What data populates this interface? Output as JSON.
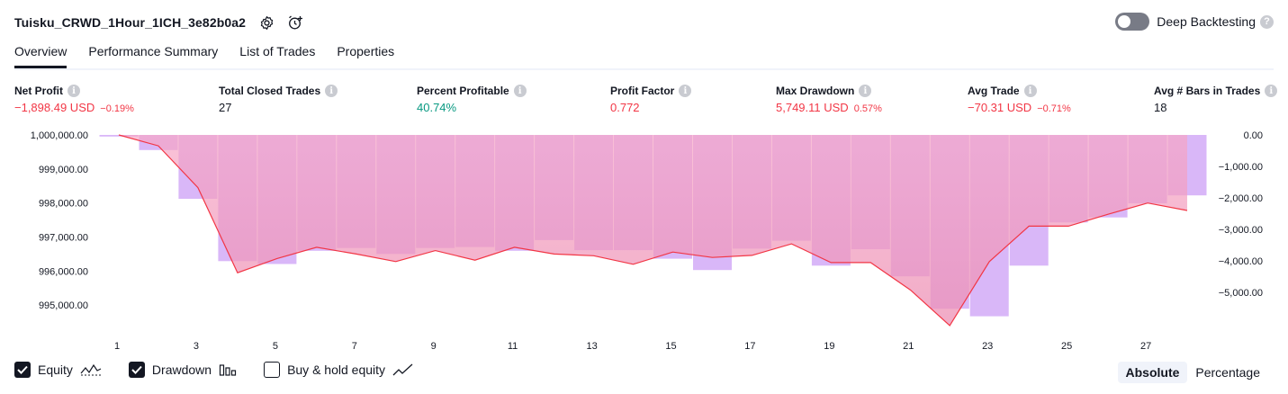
{
  "header": {
    "strategy_name": "Tuisku_CRWD_1Hour_1ICH_3e82b0a2",
    "deep_backtesting_label": "Deep Backtesting",
    "deep_backtesting_enabled": false,
    "icons": [
      "settings-icon",
      "alarm-add-icon",
      "help-icon"
    ]
  },
  "tabs": [
    {
      "label": "Overview",
      "active": true
    },
    {
      "label": "Performance Summary",
      "active": false
    },
    {
      "label": "List of Trades",
      "active": false
    },
    {
      "label": "Properties",
      "active": false
    }
  ],
  "metrics": {
    "net_profit": {
      "label": "Net Profit",
      "value": "−1,898.49 USD",
      "pct": "−0.19%"
    },
    "total_closed_trades": {
      "label": "Total Closed Trades",
      "value": "27"
    },
    "percent_profitable": {
      "label": "Percent Profitable",
      "value": "40.74%"
    },
    "profit_factor": {
      "label": "Profit Factor",
      "value": "0.772"
    },
    "max_drawdown": {
      "label": "Max Drawdown",
      "value": "5,749.11 USD",
      "pct": "0.57%"
    },
    "avg_trade": {
      "label": "Avg Trade",
      "value": "−70.31 USD",
      "pct": "−0.71%"
    },
    "avg_bars": {
      "label": "Avg # Bars in Trades",
      "value": "18"
    }
  },
  "legend": {
    "equity": {
      "label": "Equity",
      "checked": true
    },
    "drawdown": {
      "label": "Drawdown",
      "checked": true
    },
    "buy_hold": {
      "label": "Buy & hold equity",
      "checked": false
    }
  },
  "modes": {
    "absolute": "Absolute",
    "percentage": "Percentage",
    "active": "absolute"
  },
  "colors": {
    "equity_line": "#f23645",
    "equity_fill_top": "#f7a5c4",
    "equity_fill_bottom": "#ec8fb4",
    "drawdown_bar": "#d9b7f8",
    "negative": "#f23645",
    "positive": "#089981"
  },
  "chart_data": {
    "type": "line",
    "left_axis": {
      "ticks": [
        1000000,
        999000,
        998000,
        997000,
        996000,
        995000
      ],
      "tick_labels": [
        "1,000,000.00",
        "999,000.00",
        "998,000.00",
        "997,000.00",
        "996,000.00",
        "995,000.00"
      ],
      "ylim": [
        994450,
        1000000
      ]
    },
    "right_axis": {
      "ticks": [
        0,
        -1000,
        -2000,
        -3000,
        -4000,
        -5000
      ],
      "tick_labels": [
        "0.00",
        "−1,000.00",
        "−2,000.00",
        "−3,000.00",
        "−4,000.00",
        "−5,000.00"
      ],
      "ylim": [
        -6000,
        0
      ]
    },
    "x_ticks": [
      "1",
      "3",
      "5",
      "7",
      "9",
      "11",
      "13",
      "15",
      "17",
      "19",
      "21",
      "23",
      "25",
      "27"
    ],
    "x_range": [
      1,
      28
    ],
    "series": [
      {
        "name": "Equity",
        "x": [
          1,
          2,
          3,
          4,
          5,
          6,
          7,
          8,
          9,
          10,
          11,
          12,
          13,
          14,
          15,
          16,
          17,
          18,
          19,
          20,
          21,
          22,
          23,
          24,
          25,
          26,
          27,
          28
        ],
        "values": [
          1000000,
          999680,
          998450,
          995950,
          996370,
          996700,
          996500,
          996280,
          996600,
          996320,
          996700,
          996500,
          996450,
          996200,
          996560,
          996400,
          996460,
          996800,
          996250,
          996250,
          995450,
          994400,
          996280,
          997320,
          997320,
          997670,
          998000,
          997780
        ]
      },
      {
        "name": "Drawdown",
        "x": [
          1,
          2,
          3,
          4,
          5,
          6,
          7,
          8,
          9,
          10,
          11,
          12,
          13,
          14,
          15,
          16,
          17,
          18,
          19,
          20,
          21,
          22,
          23,
          24,
          25,
          26,
          27,
          28
        ],
        "values": [
          -50,
          -480,
          -2030,
          -4010,
          -4100,
          -3680,
          -3590,
          -3780,
          -3590,
          -3560,
          -3680,
          -3340,
          -3660,
          -3660,
          -3930,
          -4290,
          -3610,
          -3360,
          -4150,
          -3630,
          -4490,
          -5520,
          -5760,
          -4150,
          -2780,
          -2620,
          -2170,
          -1920
        ]
      }
    ]
  }
}
